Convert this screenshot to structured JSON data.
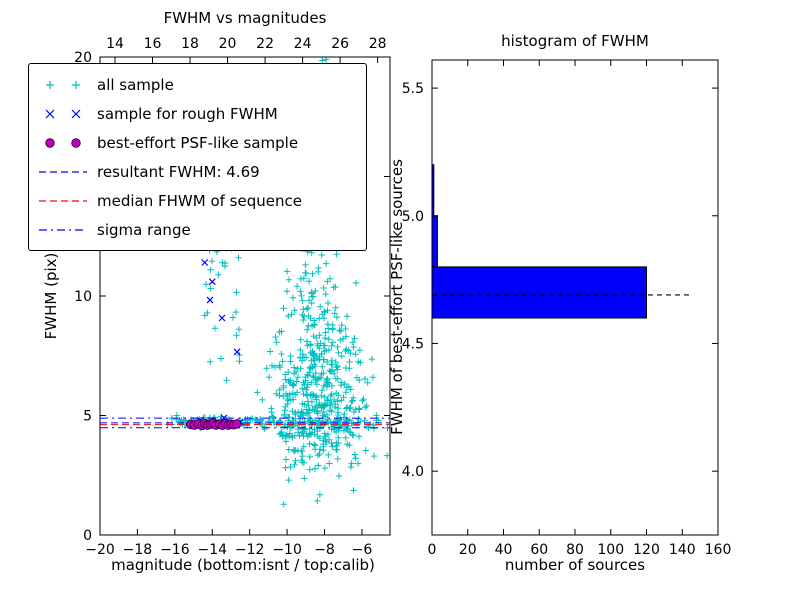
{
  "figure": {
    "background": "#ffffff"
  },
  "colors": {
    "all_sample": "#00bfbf",
    "rough_sample": "#0000ff",
    "psf_sample": "#bf00bf",
    "median_line": "#ff0000",
    "hist_bar": "#0000ff",
    "axis": "#000000"
  },
  "legend": {
    "items": [
      {
        "label": "all sample",
        "marker": "plus",
        "color": "#00bfbf"
      },
      {
        "label": "sample for rough FWHM",
        "marker": "x",
        "color": "#0000ff"
      },
      {
        "label": "best-effort PSF-like sample",
        "marker": "circle",
        "color": "#bf00bf"
      },
      {
        "label": "resultant FWHM: 4.69",
        "marker": "dashed",
        "color": "#0000ff"
      },
      {
        "label": "median FHWM of sequence",
        "marker": "dashed",
        "color": "#ff0000"
      },
      {
        "label": "sigma range",
        "marker": "dashdot",
        "color": "#0000ff"
      }
    ]
  },
  "chart_data": [
    {
      "type": "scatter",
      "title": "FWHM vs magnitudes",
      "xlabel": "magnitude (bottom:isnt / top:calib)",
      "ylabel": "FWHM (pix)",
      "xlim": [
        -20,
        -4.5
      ],
      "ylim": [
        0,
        20
      ],
      "top_xlim": [
        13.2,
        28.66
      ],
      "xticks": [
        -20,
        -18,
        -16,
        -14,
        -12,
        -10,
        -8,
        -6
      ],
      "xtick_labels": [
        "−20",
        "−18",
        "−16",
        "−14",
        "−12",
        "−10",
        "−8",
        "−6"
      ],
      "top_xticks": [
        14,
        16,
        18,
        20,
        22,
        24,
        26,
        28
      ],
      "yticks": [
        0,
        5,
        10,
        15,
        20
      ],
      "seed": 13,
      "series": [
        {
          "name": "all sample",
          "marker": "plus",
          "color": "#00bfbf",
          "clusters": [
            {
              "cx": -8.7,
              "cy": 6.2,
              "sx": 1.0,
              "sy": 1.7,
              "n": 240
            },
            {
              "cx": -8.3,
              "cy": 4.3,
              "sx": 1.3,
              "sy": 0.8,
              "n": 110
            },
            {
              "cx": -9.0,
              "cy": 9.8,
              "sx": 0.8,
              "sy": 1.6,
              "n": 70
            },
            {
              "cx": -7.2,
              "cy": 6.0,
              "sx": 0.7,
              "sy": 1.8,
              "n": 55
            },
            {
              "cx": -9.9,
              "cy": 5.4,
              "sx": 0.6,
              "sy": 0.9,
              "n": 45
            },
            {
              "cx": -14.2,
              "cy": 4.72,
              "sx": 1.1,
              "sy": 0.12,
              "n": 60
            },
            {
              "cx": -11.2,
              "cy": 4.7,
              "sx": 1.5,
              "sy": 0.1,
              "n": 50
            },
            {
              "cx": -7.0,
              "cy": 4.66,
              "sx": 1.1,
              "sy": 0.09,
              "n": 35
            },
            {
              "cx": -14.35,
              "cy": 12.5,
              "sx": 0.3,
              "sy": 3.8,
              "n": 26
            },
            {
              "cx": -12.9,
              "cy": 9.2,
              "sx": 0.45,
              "sy": 2.2,
              "n": 20
            },
            {
              "cx": -13.1,
              "cy": 16.5,
              "sx": 0.5,
              "sy": 1.8,
              "n": 10
            },
            {
              "cx": -8.6,
              "cy": 13.8,
              "sx": 0.9,
              "sy": 1.7,
              "n": 28
            },
            {
              "cx": -8.9,
              "cy": 17.5,
              "sx": 0.8,
              "sy": 1.5,
              "n": 8
            },
            {
              "cx": -6.4,
              "cy": 5.6,
              "sx": 0.5,
              "sy": 1.4,
              "n": 22
            }
          ]
        },
        {
          "name": "sample for rough FWHM",
          "marker": "x",
          "color": "#0000ff",
          "points": [
            [
              -14.4,
              11.4
            ],
            [
              -14.12,
              9.83
            ],
            [
              -14.0,
              10.6
            ],
            [
              -13.48,
              9.08
            ],
            [
              -12.67,
              7.66
            ],
            [
              -14.65,
              4.81
            ],
            [
              -14.28,
              4.56
            ],
            [
              -13.85,
              4.69
            ],
            [
              -13.37,
              4.9
            ],
            [
              -12.94,
              4.6
            ],
            [
              -12.51,
              4.73
            ]
          ]
        },
        {
          "name": "best-effort PSF-like sample",
          "marker": "circle",
          "color": "#bf00bf",
          "points": [
            [
              -15.15,
              4.62
            ],
            [
              -14.95,
              4.6
            ],
            [
              -14.75,
              4.65
            ],
            [
              -14.55,
              4.58
            ],
            [
              -14.4,
              4.66
            ],
            [
              -14.25,
              4.6
            ],
            [
              -14.1,
              4.63
            ],
            [
              -13.95,
              4.68
            ],
            [
              -13.8,
              4.6
            ],
            [
              -13.6,
              4.64
            ],
            [
              -13.45,
              4.59
            ],
            [
              -13.3,
              4.66
            ],
            [
              -13.15,
              4.6
            ],
            [
              -13.0,
              4.63
            ],
            [
              -12.85,
              4.61
            ],
            [
              -12.7,
              4.65
            ]
          ]
        }
      ],
      "lines": [
        {
          "name": "resultant FWHM: 4.69",
          "y": 4.69,
          "style": "dashed",
          "color": "#0000ff",
          "data_name": "resultant-fwhm-line"
        },
        {
          "name": "median FHWM of sequence",
          "y": 4.62,
          "style": "dashed",
          "color": "#ff0000",
          "data_name": "median-sequence-line"
        },
        {
          "name": "sigma range",
          "y": 4.89,
          "style": "dashdot",
          "color": "#0000ff",
          "data_name": "sigma-range-upper-line"
        },
        {
          "name": "sigma range",
          "y": 4.49,
          "style": "dashdot",
          "color": "#0000ff",
          "data_name": "sigma-range-lower-line"
        }
      ],
      "resultant_fwhm": 4.69
    },
    {
      "type": "bar",
      "orientation": "horizontal",
      "title": "histogram of FWHM",
      "xlabel": "number of sources",
      "ylabel": "FWHM of best-effort PSF-like sources",
      "xlim": [
        0,
        160
      ],
      "ylim": [
        3.75,
        5.61
      ],
      "xticks": [
        0,
        20,
        40,
        60,
        80,
        100,
        120,
        140,
        160
      ],
      "yticks": [
        4.0,
        4.5,
        5.0,
        5.5
      ],
      "ytick_labels": [
        "4.0",
        "4.5",
        "5.0",
        "5.5"
      ],
      "bar_color": "#0000ff",
      "bins": [
        {
          "from": 4.6,
          "to": 4.8,
          "count": 120
        },
        {
          "from": 4.8,
          "to": 5.0,
          "count": 3
        },
        {
          "from": 5.0,
          "to": 5.2,
          "count": 1
        }
      ],
      "dashed_line": {
        "y": 4.69,
        "x_end": 145,
        "color": "#000000"
      }
    }
  ]
}
